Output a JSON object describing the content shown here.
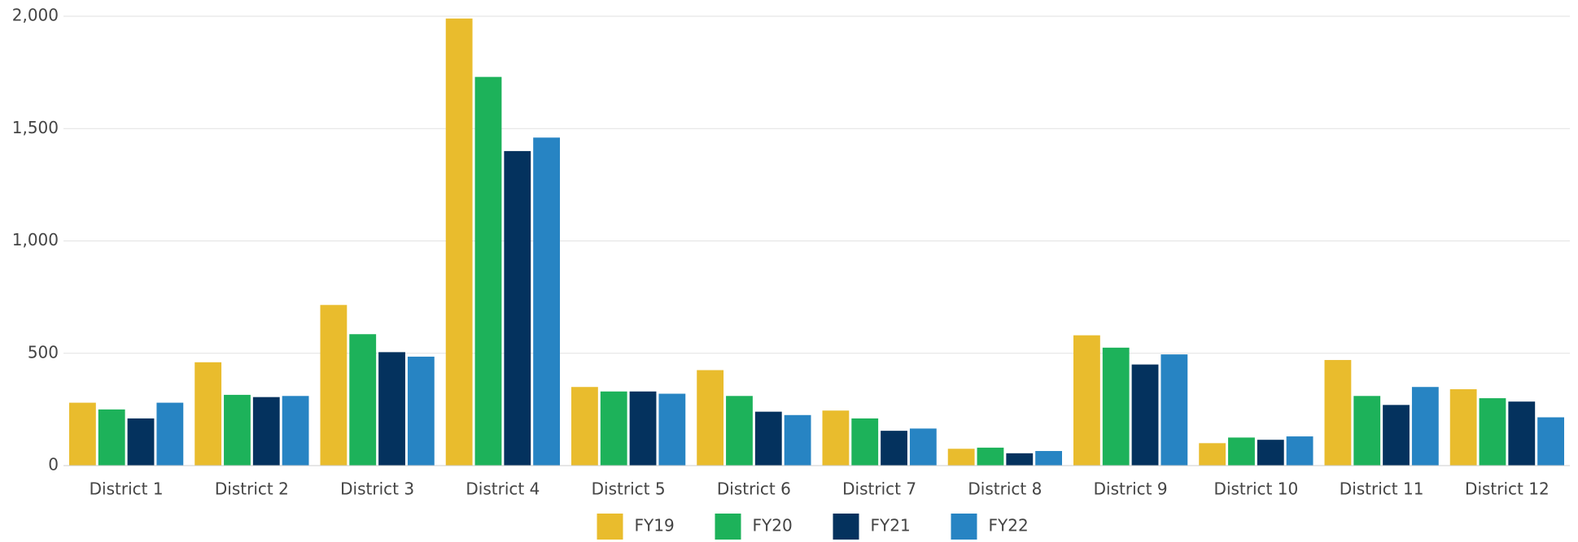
{
  "chart_data": {
    "type": "bar",
    "categories": [
      "District 1",
      "District 2",
      "District 3",
      "District 4",
      "District 5",
      "District 6",
      "District 7",
      "District 8",
      "District 9",
      "District 10",
      "District 11",
      "District 12"
    ],
    "series": [
      {
        "name": "FY19",
        "color": "#e9bc2d",
        "values": [
          280,
          460,
          715,
          1990,
          350,
          425,
          245,
          75,
          580,
          100,
          470,
          340
        ]
      },
      {
        "name": "FY20",
        "color": "#1db25a",
        "values": [
          250,
          315,
          585,
          1730,
          330,
          310,
          210,
          80,
          525,
          125,
          310,
          300
        ]
      },
      {
        "name": "FY21",
        "color": "#04325e",
        "values": [
          210,
          305,
          505,
          1400,
          330,
          240,
          155,
          55,
          450,
          115,
          270,
          285
        ]
      },
      {
        "name": "FY22",
        "color": "#2784c3",
        "values": [
          280,
          310,
          485,
          1460,
          320,
          225,
          165,
          65,
          495,
          130,
          350,
          215
        ]
      }
    ],
    "ylim": [
      0,
      2000
    ],
    "yticks": [
      0,
      500,
      {
        "value": 1000,
        "label": "1,000"
      },
      {
        "value": 1500,
        "label": "1,500"
      },
      {
        "value": 2000,
        "label": "2,000"
      }
    ],
    "grid": true,
    "legend": "bottom"
  }
}
